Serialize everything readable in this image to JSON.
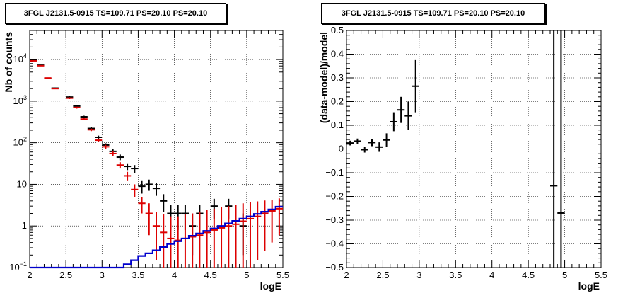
{
  "chart_data": [
    {
      "type": "histogram",
      "title": "3FGL J2131.5-0915 TS=109.71 PS=20.10 PS=20.10",
      "xlabel": "logE",
      "ylabel": "Nb of counts",
      "xlim": [
        2,
        5.5
      ],
      "ylim": [
        0.1,
        50000
      ],
      "yscale": "log",
      "grid": true,
      "x_ticks": [
        "2",
        "2.5",
        "3",
        "3.5",
        "4",
        "4.5",
        "5",
        "5.5"
      ],
      "y_ticks": [
        {
          "value": 0.1,
          "base": "10",
          "exp": "−1"
        },
        {
          "value": 1,
          "base": "1",
          "exp": ""
        },
        {
          "value": 10,
          "base": "10",
          "exp": ""
        },
        {
          "value": 100,
          "base": "10",
          "exp": "2"
        },
        {
          "value": 1000,
          "base": "10",
          "exp": "3"
        },
        {
          "value": 10000,
          "base": "10",
          "exp": "4"
        }
      ],
      "bin_width": 0.1,
      "series": [
        {
          "color": "#000000",
          "points": [
            {
              "x": 2.05,
              "y": 9500,
              "lo": 9300,
              "hi": 9700
            },
            {
              "x": 2.15,
              "y": 7300,
              "lo": 7150,
              "hi": 7450
            },
            {
              "x": 2.25,
              "y": 3500,
              "lo": 3400,
              "hi": 3600
            },
            {
              "x": 2.35,
              "y": 2050,
              "lo": 1990,
              "hi": 2110
            },
            {
              "x": 2.55,
              "y": 1250,
              "lo": 1190,
              "hi": 1310
            },
            {
              "x": 2.65,
              "y": 760,
              "lo": 720,
              "hi": 800
            },
            {
              "x": 2.75,
              "y": 420,
              "lo": 395,
              "hi": 445
            },
            {
              "x": 2.85,
              "y": 220,
              "lo": 205,
              "hi": 235
            },
            {
              "x": 2.95,
              "y": 135,
              "lo": 122,
              "hi": 148
            },
            {
              "x": 3.05,
              "y": 88,
              "lo": 79,
              "hi": 97
            },
            {
              "x": 3.15,
              "y": 62,
              "lo": 54,
              "hi": 70
            },
            {
              "x": 3.25,
              "y": 45,
              "lo": 38,
              "hi": 52
            },
            {
              "x": 3.35,
              "y": 27,
              "lo": 22,
              "hi": 32
            },
            {
              "x": 3.45,
              "y": 24,
              "lo": 19,
              "hi": 29
            },
            {
              "x": 3.55,
              "y": 9,
              "lo": 6,
              "hi": 12
            },
            {
              "x": 3.65,
              "y": 10,
              "lo": 7,
              "hi": 13
            },
            {
              "x": 3.75,
              "y": 8,
              "lo": 5.3,
              "hi": 10.7
            },
            {
              "x": 3.85,
              "y": 4,
              "lo": 2.2,
              "hi": 5.8
            },
            {
              "x": 3.95,
              "y": 2,
              "lo": 0.8,
              "hi": 3.2
            },
            {
              "x": 4.05,
              "y": 2,
              "lo": 0.8,
              "hi": 3.2
            },
            {
              "x": 4.15,
              "y": 2,
              "lo": 0.8,
              "hi": 3.2
            },
            {
              "x": 4.25,
              "y": 1,
              "lo": 0.2,
              "hi": 2
            },
            {
              "x": 4.35,
              "y": 2,
              "lo": 0.8,
              "hi": 3.2
            },
            {
              "x": 4.55,
              "y": 3,
              "lo": 1.5,
              "hi": 4.5
            },
            {
              "x": 4.75,
              "y": 3,
              "lo": 1.5,
              "hi": 4.5
            },
            {
              "x": 4.95,
              "y": 1,
              "lo": 0.2,
              "hi": 2
            }
          ]
        },
        {
          "color": "#dd0000",
          "points": [
            {
              "x": 2.05,
              "y": 9300,
              "lo": 9100,
              "hi": 9500
            },
            {
              "x": 2.15,
              "y": 7100,
              "lo": 6950,
              "hi": 7250
            },
            {
              "x": 2.25,
              "y": 3600,
              "lo": 3500,
              "hi": 3700
            },
            {
              "x": 2.35,
              "y": 2000,
              "lo": 1940,
              "hi": 2060
            },
            {
              "x": 2.55,
              "y": 1180,
              "lo": 1120,
              "hi": 1240
            },
            {
              "x": 2.65,
              "y": 700,
              "lo": 660,
              "hi": 740
            },
            {
              "x": 2.75,
              "y": 370,
              "lo": 350,
              "hi": 390
            },
            {
              "x": 2.85,
              "y": 205,
              "lo": 190,
              "hi": 220
            },
            {
              "x": 2.95,
              "y": 115,
              "lo": 104,
              "hi": 126
            },
            {
              "x": 3.05,
              "y": 80,
              "lo": 71,
              "hi": 89
            },
            {
              "x": 3.15,
              "y": 55,
              "lo": 48,
              "hi": 62
            },
            {
              "x": 3.25,
              "y": 29,
              "lo": 24,
              "hi": 34
            },
            {
              "x": 3.35,
              "y": 16,
              "lo": 12,
              "hi": 20
            },
            {
              "x": 3.45,
              "y": 7.5,
              "lo": 5,
              "hi": 10
            },
            {
              "x": 3.55,
              "y": 3.5,
              "lo": 2,
              "hi": 5
            },
            {
              "x": 3.65,
              "y": 2,
              "lo": 0.6,
              "hi": 3.5
            },
            {
              "x": 3.75,
              "y": 1,
              "lo": 0.15,
              "hi": 2.2
            },
            {
              "x": 3.85,
              "y": 0.7,
              "lo": 0.1,
              "hi": 1.9
            },
            {
              "x": 3.95,
              "y": 0.5,
              "lo": 0.1,
              "hi": 1.7
            },
            {
              "x": 4.05,
              "y": 0.45,
              "lo": 0.1,
              "hi": 1.7
            },
            {
              "x": 4.15,
              "y": 0.5,
              "lo": 0.1,
              "hi": 1.9
            },
            {
              "x": 4.25,
              "y": 0.55,
              "lo": 0.1,
              "hi": 2
            },
            {
              "x": 4.35,
              "y": 0.6,
              "lo": 0.1,
              "hi": 2.2
            },
            {
              "x": 4.45,
              "y": 0.7,
              "lo": 0.1,
              "hi": 2.4
            },
            {
              "x": 4.55,
              "y": 0.8,
              "lo": 0.1,
              "hi": 2.6
            },
            {
              "x": 4.65,
              "y": 0.9,
              "lo": 0.1,
              "hi": 2.8
            },
            {
              "x": 4.75,
              "y": 1.0,
              "lo": 0.1,
              "hi": 3.0
            },
            {
              "x": 4.85,
              "y": 1.1,
              "lo": 0.1,
              "hi": 3.2
            },
            {
              "x": 4.95,
              "y": 1.3,
              "lo": 0.1,
              "hi": 3.5
            },
            {
              "x": 5.05,
              "y": 1.5,
              "lo": 0.1,
              "hi": 3.7
            },
            {
              "x": 5.15,
              "y": 1.7,
              "lo": 0.15,
              "hi": 3.9
            },
            {
              "x": 5.25,
              "y": 2.0,
              "lo": 0.25,
              "hi": 4.1
            },
            {
              "x": 5.35,
              "y": 2.3,
              "lo": 0.4,
              "hi": 4.3
            },
            {
              "x": 5.45,
              "y": 2.6,
              "lo": 0.6,
              "hi": 4.6
            }
          ]
        },
        {
          "color": "#0000cc",
          "step": true,
          "points": [
            {
              "x": 2.05,
              "y": 0.1
            },
            {
              "x": 2.15,
              "y": 0.1
            },
            {
              "x": 2.25,
              "y": 0.1
            },
            {
              "x": 2.35,
              "y": 0.1
            },
            {
              "x": 2.45,
              "y": 0.1
            },
            {
              "x": 2.55,
              "y": 0.1
            },
            {
              "x": 2.65,
              "y": 0.1
            },
            {
              "x": 2.75,
              "y": 0.1
            },
            {
              "x": 2.85,
              "y": 0.1
            },
            {
              "x": 2.95,
              "y": 0.1
            },
            {
              "x": 3.05,
              "y": 0.1
            },
            {
              "x": 3.15,
              "y": 0.1
            },
            {
              "x": 3.25,
              "y": 0.1
            },
            {
              "x": 3.35,
              "y": 0.12
            },
            {
              "x": 3.45,
              "y": 0.15
            },
            {
              "x": 3.55,
              "y": 0.19
            },
            {
              "x": 3.65,
              "y": 0.22
            },
            {
              "x": 3.75,
              "y": 0.26
            },
            {
              "x": 3.85,
              "y": 0.31
            },
            {
              "x": 3.95,
              "y": 0.37
            },
            {
              "x": 4.05,
              "y": 0.43
            },
            {
              "x": 4.15,
              "y": 0.5
            },
            {
              "x": 4.25,
              "y": 0.58
            },
            {
              "x": 4.35,
              "y": 0.66
            },
            {
              "x": 4.45,
              "y": 0.76
            },
            {
              "x": 4.55,
              "y": 0.87
            },
            {
              "x": 4.65,
              "y": 1.0
            },
            {
              "x": 4.75,
              "y": 1.15
            },
            {
              "x": 4.85,
              "y": 1.32
            },
            {
              "x": 4.95,
              "y": 1.5
            },
            {
              "x": 5.05,
              "y": 1.7
            },
            {
              "x": 5.15,
              "y": 1.95
            },
            {
              "x": 5.25,
              "y": 2.2
            },
            {
              "x": 5.35,
              "y": 2.5
            },
            {
              "x": 5.45,
              "y": 2.9
            }
          ]
        }
      ]
    },
    {
      "type": "scatter",
      "title": "3FGL J2131.5-0915 TS=109.71 PS=20.10 PS=20.10",
      "xlabel": "logE",
      "ylabel": "(data-model)/model",
      "xlim": [
        2,
        5.5
      ],
      "ylim": [
        -0.5,
        0.5
      ],
      "grid": true,
      "x_ticks": [
        "2",
        "2.5",
        "3",
        "3.5",
        "4",
        "4.5",
        "5",
        "5.5"
      ],
      "y_ticks": [
        "−0.5",
        "−0.4",
        "−0.3",
        "−0.2",
        "−0.1",
        "0",
        "0.1",
        "0.2",
        "0.3",
        "0.4",
        "0.5"
      ],
      "bin_width": 0.1,
      "series": [
        {
          "color": "#000000",
          "points": [
            {
              "x": 2.05,
              "y": 0.025,
              "lo": 0.015,
              "hi": 0.035
            },
            {
              "x": 2.15,
              "y": 0.033,
              "lo": 0.022,
              "hi": 0.044
            },
            {
              "x": 2.25,
              "y": -0.003,
              "lo": -0.015,
              "hi": 0.009
            },
            {
              "x": 2.35,
              "y": 0.027,
              "lo": 0.012,
              "hi": 0.042
            },
            {
              "x": 2.45,
              "y": 0.008,
              "lo": -0.012,
              "hi": 0.028
            },
            {
              "x": 2.55,
              "y": 0.038,
              "lo": 0.01,
              "hi": 0.066
            },
            {
              "x": 2.65,
              "y": 0.115,
              "lo": 0.075,
              "hi": 0.155
            },
            {
              "x": 2.75,
              "y": 0.165,
              "lo": 0.11,
              "hi": 0.22
            },
            {
              "x": 2.85,
              "y": 0.14,
              "lo": 0.08,
              "hi": 0.2
            },
            {
              "x": 2.95,
              "y": 0.265,
              "lo": 0.155,
              "hi": 0.375
            },
            {
              "x": 4.85,
              "y": -0.155,
              "lo": -0.5,
              "hi": 0.5
            },
            {
              "x": 4.95,
              "y": -0.27,
              "lo": -0.5,
              "hi": 0.5
            }
          ]
        }
      ]
    }
  ]
}
